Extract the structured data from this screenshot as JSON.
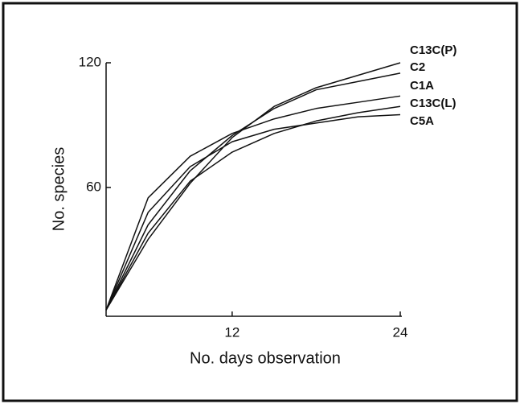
{
  "chart_data": {
    "type": "line",
    "xlabel": "No. days observation",
    "ylabel": "No. species",
    "x": [
      3,
      6,
      9,
      12,
      15,
      18,
      21,
      24
    ],
    "xlim": [
      3,
      24
    ],
    "xticks": [
      12,
      24
    ],
    "ylim": [
      -2,
      120
    ],
    "yticks": [
      60,
      120
    ],
    "series": [
      {
        "name": "C13C(P)",
        "color": "#111111",
        "values": [
          1,
          35,
          62,
          84,
          99,
          108,
          114,
          120
        ]
      },
      {
        "name": "C2",
        "color": "#111111",
        "values": [
          1,
          42,
          68,
          85,
          98,
          107,
          111,
          115
        ]
      },
      {
        "name": "C1A",
        "color": "#111111",
        "values": [
          1,
          55,
          75,
          86,
          93,
          98,
          101,
          104
        ]
      },
      {
        "name": "C13C(L)",
        "color": "#111111",
        "values": [
          1,
          38,
          63,
          77,
          86,
          92,
          96,
          99
        ]
      },
      {
        "name": "C5A",
        "color": "#111111",
        "values": [
          1,
          48,
          70,
          82,
          88,
          91,
          94,
          95
        ]
      }
    ]
  }
}
